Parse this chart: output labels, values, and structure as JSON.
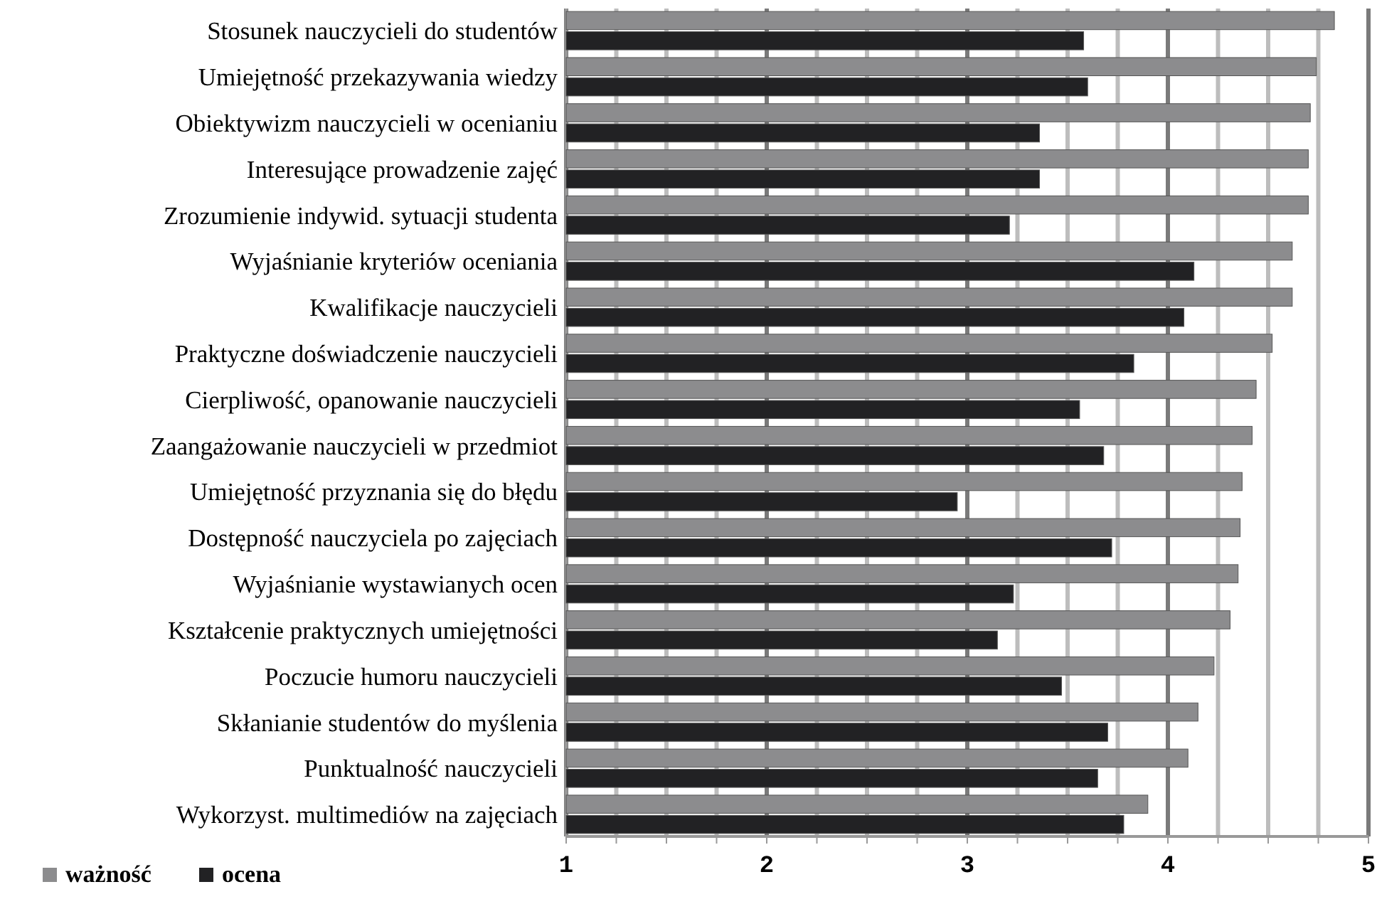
{
  "chart_data": {
    "type": "bar",
    "orientation": "horizontal",
    "categories": [
      "Stosunek nauczycieli  do studentów",
      "Umiejętność przekazywania wiedzy",
      "Obiektywizm nauczycieli w ocenianiu",
      "Interesujące prowadzenie zajęć",
      "Zrozumienie indywid. sytuacji studenta",
      "Wyjaśnianie kryteriów oceniania",
      "Kwalifikacje nauczycieli",
      "Praktyczne doświadczenie nauczycieli",
      "Cierpliwość, opanowanie nauczycieli",
      "Zaangażowanie nauczycieli w przedmiot",
      "Umiejętność przyznania się do błędu",
      "Dostępność nauczyciela po zajęciach",
      "Wyjaśnianie wystawianych ocen",
      "Kształcenie praktycznych umiejętności",
      "Poczucie humoru nauczycieli",
      "Skłanianie studentów do myślenia",
      "Punktualność nauczycieli",
      "Wykorzyst. multimediów na zajęciach"
    ],
    "series": [
      {
        "name": "ważność",
        "color": "#8c8c8e",
        "values": [
          4.83,
          4.74,
          4.71,
          4.7,
          4.7,
          4.62,
          4.62,
          4.52,
          4.44,
          4.42,
          4.37,
          4.36,
          4.35,
          4.31,
          4.23,
          4.15,
          4.1,
          3.9
        ]
      },
      {
        "name": "ocena",
        "color": "#222224",
        "values": [
          3.58,
          3.6,
          3.36,
          3.36,
          3.21,
          4.13,
          4.08,
          3.83,
          3.56,
          3.68,
          2.95,
          3.72,
          3.23,
          3.15,
          3.47,
          3.7,
          3.65,
          3.78
        ]
      }
    ],
    "xlim": [
      1,
      5
    ],
    "xticks": [
      1,
      {
        "value": 1.25,
        "label": null
      },
      {
        "value": 1.5,
        "label": null
      },
      {
        "value": 1.75,
        "label": null
      },
      2,
      {
        "value": 2.25,
        "label": null
      },
      {
        "value": 2.5,
        "label": null
      },
      {
        "value": 2.75,
        "label": null
      },
      3,
      {
        "value": 3.25,
        "label": null
      },
      {
        "value": 3.5,
        "label": null
      },
      {
        "value": 3.75,
        "label": null
      },
      4,
      {
        "value": 4.25,
        "label": null
      },
      {
        "value": 4.5,
        "label": null
      },
      {
        "value": 4.75,
        "label": null
      },
      5
    ],
    "grid": true,
    "legend": "bottom left"
  }
}
